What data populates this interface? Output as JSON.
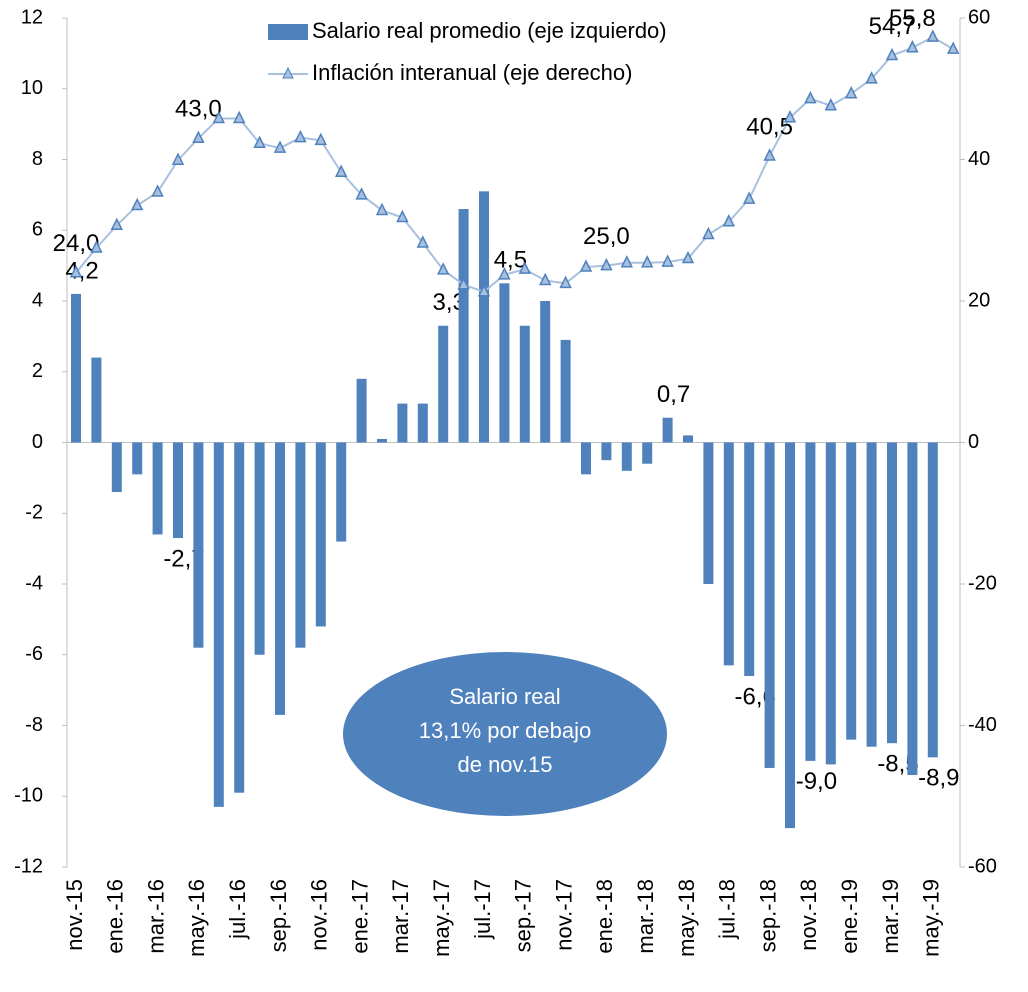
{
  "chart_data": {
    "type": "bar",
    "categories": [
      "nov.-15",
      null,
      "ene.-16",
      null,
      "mar.-16",
      null,
      "may.-16",
      null,
      "jul.-16",
      null,
      "sep.-16",
      null,
      "nov.-16",
      null,
      "ene.-17",
      null,
      "mar.-17",
      null,
      "may.-17",
      null,
      "jul.-17",
      null,
      "sep.-17",
      null,
      "nov.-17",
      null,
      "ene.-18",
      null,
      "mar.-18",
      null,
      "may.-18",
      null,
      "jul.-18",
      null,
      "sep.-18",
      null,
      "nov.-18",
      null,
      "ene.-19",
      null,
      "mar.-19",
      null,
      "may.-19",
      null
    ],
    "series": [
      {
        "name": "Salario real promedio (eje izquierdo)",
        "type": "bar",
        "color": "#4f81bd",
        "values": [
          4.2,
          2.4,
          -1.4,
          -0.9,
          -2.6,
          -2.7,
          -5.8,
          -10.3,
          -9.9,
          -6.0,
          -7.7,
          -5.8,
          -5.2,
          -2.8,
          1.8,
          0.1,
          1.1,
          1.1,
          3.3,
          6.6,
          7.1,
          4.5,
          3.3,
          4.0,
          2.9,
          -0.9,
          -0.5,
          -0.8,
          -0.6,
          0.7,
          0.2,
          -4.0,
          -6.3,
          -6.6,
          -9.2,
          -10.9,
          -9.0,
          -9.1,
          -8.4,
          -8.6,
          -8.5,
          -9.4,
          -8.9,
          null
        ],
        "value_labels": [
          "4,2",
          null,
          null,
          null,
          null,
          "-2,7",
          null,
          null,
          null,
          null,
          null,
          null,
          null,
          null,
          null,
          null,
          null,
          null,
          "3,3",
          null,
          null,
          "4,5",
          null,
          null,
          null,
          null,
          null,
          null,
          null,
          "0,7",
          null,
          null,
          null,
          "-6,6",
          null,
          null,
          "-9,0",
          null,
          null,
          null,
          "-8,5",
          null,
          "-8,9",
          null
        ]
      },
      {
        "name": "Inflación interanual (eje derecho)",
        "type": "line",
        "axis": "y2",
        "color": "#a7c0de",
        "marker_color": "#4f81bd",
        "values": [
          24.0,
          27.5,
          30.7,
          33.5,
          35.4,
          39.9,
          43.0,
          45.8,
          45.8,
          42.3,
          41.6,
          43.1,
          42.7,
          38.2,
          35.0,
          32.8,
          31.8,
          28.2,
          24.4,
          22.3,
          21.3,
          23.7,
          24.5,
          22.9,
          22.5,
          24.8,
          25.0,
          25.4,
          25.4,
          25.5,
          26.0,
          29.4,
          31.2,
          34.4,
          40.5,
          45.9,
          48.6,
          47.6,
          49.3,
          51.4,
          54.7,
          55.8,
          57.3,
          55.6
        ],
        "value_labels": [
          "24,0",
          null,
          null,
          null,
          null,
          null,
          "43,0",
          null,
          null,
          null,
          null,
          null,
          null,
          null,
          null,
          null,
          null,
          null,
          null,
          null,
          null,
          null,
          null,
          null,
          null,
          null,
          "25,0",
          null,
          null,
          null,
          null,
          null,
          null,
          null,
          "40,5",
          null,
          null,
          null,
          null,
          null,
          "54,7",
          "55,8",
          null,
          null
        ]
      }
    ],
    "ylim": [
      -12,
      12
    ],
    "yticks": [
      -12,
      -10,
      -8,
      -6,
      -4,
      -2,
      0,
      2,
      4,
      6,
      8,
      10,
      12
    ],
    "y2lim": [
      -60,
      60
    ],
    "y2ticks": [
      -60,
      -40,
      -20,
      0,
      20,
      40,
      60
    ],
    "grid": false,
    "legend": "top",
    "annotation": {
      "lines": [
        "Salario real",
        "13,1% por debajo",
        "de nov.15"
      ],
      "color": "#4f81bd"
    }
  }
}
